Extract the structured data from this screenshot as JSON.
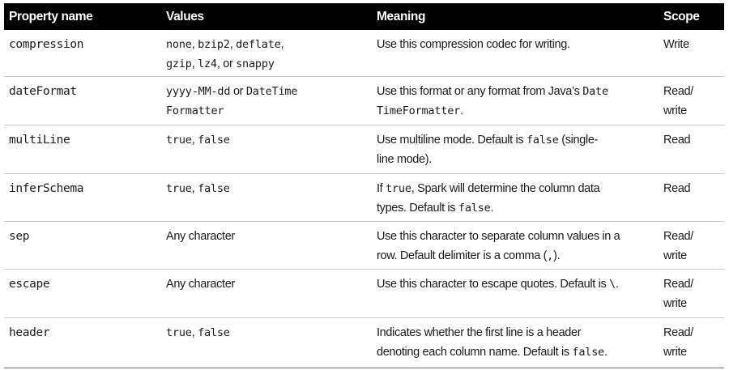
{
  "table": {
    "headers": [
      "Property name",
      "Values",
      "Meaning",
      "Scope"
    ],
    "rows": [
      {
        "property": "compression",
        "values": [
          {
            "t": "none",
            "m": true
          },
          {
            "t": ", ",
            "m": false
          },
          {
            "t": "bzip2",
            "m": true
          },
          {
            "t": ", ",
            "m": false
          },
          {
            "t": "deflate",
            "m": true
          },
          {
            "t": ",",
            "m": false
          },
          {
            "t": "\n",
            "m": false
          },
          {
            "t": "gzip",
            "m": true
          },
          {
            "t": ", ",
            "m": false
          },
          {
            "t": "lz4",
            "m": true
          },
          {
            "t": ", or ",
            "m": false
          },
          {
            "t": "snappy",
            "m": true
          }
        ],
        "meaning": [
          {
            "t": "Use this compression codec for writing.",
            "m": false
          }
        ],
        "scope": "Write"
      },
      {
        "property": "dateFormat",
        "values": [
          {
            "t": "yyyy-MM-dd",
            "m": true
          },
          {
            "t": " or ",
            "m": false
          },
          {
            "t": "DateTime",
            "m": true
          },
          {
            "t": "\n",
            "m": false
          },
          {
            "t": "Formatter",
            "m": true
          }
        ],
        "meaning": [
          {
            "t": "Use this format or any format from Java’s ",
            "m": false
          },
          {
            "t": "Date",
            "m": true
          },
          {
            "t": "\n",
            "m": false
          },
          {
            "t": "TimeFormatter",
            "m": true
          },
          {
            "t": ".",
            "m": false
          }
        ],
        "scope": "Read/\nwrite"
      },
      {
        "property": "multiLine",
        "values": [
          {
            "t": "true",
            "m": true
          },
          {
            "t": ", ",
            "m": false
          },
          {
            "t": "false",
            "m": true
          }
        ],
        "meaning": [
          {
            "t": "Use multiline mode. Default is ",
            "m": false
          },
          {
            "t": "false",
            "m": true
          },
          {
            "t": " (single-",
            "m": false
          },
          {
            "t": "\n",
            "m": false
          },
          {
            "t": "line mode).",
            "m": false
          }
        ],
        "scope": "Read"
      },
      {
        "property": "inferSchema",
        "values": [
          {
            "t": "true",
            "m": true
          },
          {
            "t": ", ",
            "m": false
          },
          {
            "t": "false",
            "m": true
          }
        ],
        "meaning": [
          {
            "t": "If ",
            "m": false
          },
          {
            "t": "true",
            "m": true
          },
          {
            "t": ", Spark will determine the column data",
            "m": false
          },
          {
            "t": "\n",
            "m": false
          },
          {
            "t": "types. Default is ",
            "m": false
          },
          {
            "t": "false",
            "m": true
          },
          {
            "t": ".",
            "m": false
          }
        ],
        "scope": "Read"
      },
      {
        "property": "sep",
        "values": [
          {
            "t": "Any character",
            "m": false
          }
        ],
        "meaning": [
          {
            "t": "Use this character to separate column values in a",
            "m": false
          },
          {
            "t": "\n",
            "m": false
          },
          {
            "t": "row. Default delimiter is a comma (",
            "m": false
          },
          {
            "t": ",",
            "m": true
          },
          {
            "t": ").",
            "m": false
          }
        ],
        "scope": "Read/\nwrite"
      },
      {
        "property": "escape",
        "values": [
          {
            "t": "Any character",
            "m": false
          }
        ],
        "meaning": [
          {
            "t": "Use this character to escape quotes. Default is ",
            "m": false
          },
          {
            "t": "\\",
            "m": true
          },
          {
            "t": ".",
            "m": false
          }
        ],
        "scope": "Read/\nwrite"
      },
      {
        "property": "header",
        "values": [
          {
            "t": "true",
            "m": true
          },
          {
            "t": ", ",
            "m": false
          },
          {
            "t": "false",
            "m": true
          }
        ],
        "meaning": [
          {
            "t": "Indicates whether the first line is a header",
            "m": false
          },
          {
            "t": "\n",
            "m": false
          },
          {
            "t": "denoting each column name. Default is ",
            "m": false
          },
          {
            "t": "false",
            "m": true
          },
          {
            "t": ".",
            "m": false
          }
        ],
        "scope": "Read/\nwrite"
      }
    ]
  }
}
